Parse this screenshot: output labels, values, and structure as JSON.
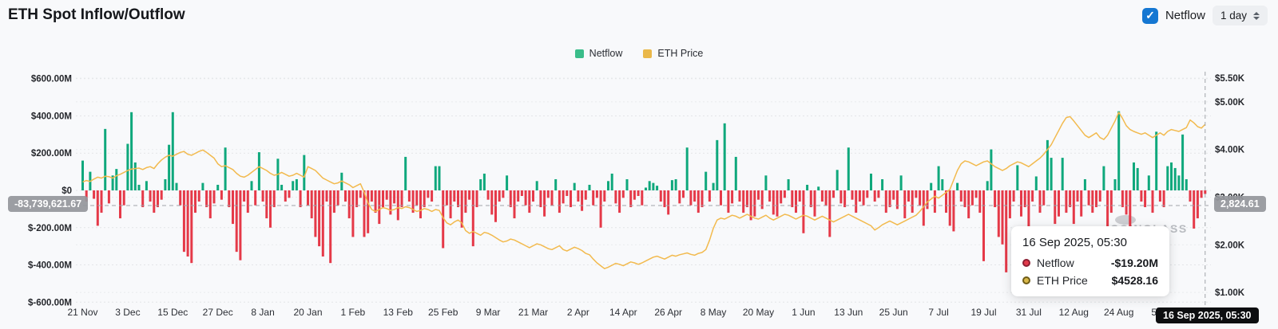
{
  "header": {
    "title": "ETH Spot Inflow/Outflow",
    "netflow_toggle": {
      "label": "Netflow",
      "checked": true,
      "check_glyph": "✓",
      "color": "#1577d2"
    },
    "interval_select": {
      "value": "1 day"
    }
  },
  "legend": [
    {
      "label": "Netflow",
      "color": "#3abd8a"
    },
    {
      "label": "ETH Price",
      "color": "#eab84a"
    }
  ],
  "crosshair": {
    "left_value": "-83,739,621.67",
    "right_value": "2,824.61",
    "x_value": "16 Sep 2025, 05:30"
  },
  "tooltip": {
    "title": "16 Sep 2025, 05:30",
    "rows": [
      {
        "label": "Netflow",
        "value": "-$19.20M",
        "dot_fill": "#e23a4b",
        "dot_ring": "#8d1f33"
      },
      {
        "label": "ETH Price",
        "value": "$4528.16",
        "dot_fill": "#d9b84a",
        "dot_ring": "#6f5c17"
      }
    ]
  },
  "watermark": "COINGLASS",
  "chart_data": {
    "type": "bar",
    "subtype": "bar+line combo, daily",
    "title": "ETH Spot Inflow/Outflow",
    "x_start": "21 Nov 2024",
    "x_end": "16 Sep 2025",
    "x_tick_labels": [
      "21 Nov",
      "3 Dec",
      "15 Dec",
      "27 Dec",
      "8 Jan",
      "20 Jan",
      "1 Feb",
      "13 Feb",
      "25 Feb",
      "9 Mar",
      "21 Mar",
      "2 Apr",
      "14 Apr",
      "26 Apr",
      "8 May",
      "20 May",
      "1 Jun",
      "13 Jun",
      "25 Jun",
      "7 Jul",
      "19 Jul",
      "31 Jul",
      "12 Aug",
      "24 Aug",
      "5 Sep"
    ],
    "y_left": {
      "name": "Netflow (USD)",
      "tick_labels": [
        "$600.00M",
        "$400.00M",
        "$200.00M",
        "$0",
        "$-200.00M",
        "$-400.00M",
        "$-600.00M"
      ],
      "tick_values": [
        600,
        400,
        200,
        0,
        -200,
        -400,
        -600
      ],
      "unit": "USD millions"
    },
    "y_right": {
      "name": "ETH Price (USD)",
      "tick_labels": [
        "$5.50K",
        "$5.00K",
        "$4.00K",
        "$3.00K",
        "$2.00K",
        "$1.00K"
      ],
      "tick_values": [
        5500,
        5000,
        4000,
        3000,
        2000,
        1000
      ],
      "unit": "USD"
    },
    "grid": "dotted horizontal",
    "legend_position": "top-center",
    "series": [
      {
        "name": "Netflow",
        "type": "bar",
        "unit": "USD millions",
        "color_positive": "#0fa87c",
        "color_negative": "#e53948",
        "values": [
          160,
          -60,
          100,
          -45,
          -190,
          -120,
          330,
          -70,
          80,
          115,
          -150,
          -80,
          250,
          420,
          150,
          30,
          -90,
          50,
          -60,
          -120,
          -90,
          -50,
          60,
          245,
          420,
          40,
          -80,
          -330,
          -355,
          -390,
          -120,
          -60,
          40,
          -90,
          -150,
          -70,
          30,
          -50,
          230,
          -90,
          -180,
          -330,
          -375,
          -60,
          -120,
          50,
          -80,
          205,
          -60,
          -150,
          -200,
          -90,
          170,
          30,
          -60,
          -40,
          50,
          60,
          -90,
          190,
          -80,
          -150,
          -250,
          -300,
          -355,
          -60,
          -390,
          -120,
          -80,
          95,
          -60,
          -150,
          -250,
          -90,
          -40,
          -250,
          -230,
          -60,
          -120,
          -180,
          -90,
          -50,
          -130,
          -70,
          -160,
          -90,
          180,
          -60,
          -120,
          -80,
          -150,
          -90,
          -40,
          -60,
          130,
          130,
          -310,
          -80,
          -150,
          -60,
          -90,
          -200,
          -120,
          -50,
          -300,
          -90,
          60,
          90,
          -50,
          -130,
          -170,
          -60,
          -40,
          80,
          -90,
          -150,
          -60,
          -30,
          -80,
          -120,
          -60,
          50,
          -90,
          -140,
          -40,
          -80,
          60,
          -120,
          -70,
          -30,
          -90,
          40,
          -60,
          -110,
          -50,
          30,
          -80,
          -40,
          -200,
          -60,
          50,
          90,
          -70,
          -120,
          -40,
          60,
          -90,
          -50,
          -30,
          -80,
          15,
          50,
          40,
          25,
          -60,
          -90,
          -130,
          55,
          60,
          -70,
          -40,
          230,
          -80,
          -60,
          -120,
          -90,
          100,
          -60,
          40,
          270,
          -80,
          360,
          -120,
          -70,
          180,
          -60,
          -120,
          -90,
          -160,
          -140,
          -50,
          -100,
          80,
          -60,
          -130,
          -140,
          -70,
          -40,
          60,
          -90,
          -120,
          -60,
          -230,
          30,
          -90,
          -140,
          20,
          -60,
          -80,
          -250,
          -40,
          110,
          -70,
          -90,
          230,
          -50,
          -120,
          -60,
          -80,
          -40,
          90,
          -60,
          -40,
          60,
          -120,
          -90,
          -50,
          -100,
          80,
          -150,
          -60,
          -120,
          -40,
          -80,
          -190,
          -100,
          40,
          -120,
          130,
          60,
          -120,
          -190,
          -220,
          40,
          -60,
          -90,
          -150,
          -80,
          -40,
          -120,
          -380,
          50,
          220,
          -90,
          -250,
          -290,
          -440,
          -150,
          -60,
          135,
          -140,
          -90,
          -290,
          -60,
          75,
          -120,
          -80,
          270,
          175,
          -180,
          -140,
          175,
          -120,
          -90,
          -180,
          -60,
          -140,
          60,
          -80,
          -120,
          -90,
          -60,
          130,
          -240,
          -120,
          60,
          425,
          -90,
          -130,
          -250,
          150,
          120,
          -60,
          -90,
          80,
          -120,
          315,
          -60,
          -90,
          130,
          150,
          120,
          80,
          300,
          60,
          -60,
          -205,
          -150,
          -40,
          -19.2
        ]
      },
      {
        "name": "ETH Price",
        "type": "line",
        "unit": "USD",
        "color": "#f2ba4e",
        "values": [
          3320,
          3350,
          3330,
          3380,
          3420,
          3400,
          3440,
          3430,
          3400,
          3450,
          3480,
          3520,
          3560,
          3590,
          3600,
          3610,
          3580,
          3620,
          3640,
          3600,
          3700,
          3780,
          3840,
          3880,
          3860,
          3900,
          3940,
          3960,
          3900,
          3880,
          3920,
          3960,
          3990,
          3940,
          3880,
          3820,
          3700,
          3640,
          3660,
          3620,
          3580,
          3500,
          3440,
          3420,
          3460,
          3520,
          3580,
          3640,
          3600,
          3560,
          3500,
          3460,
          3480,
          3520,
          3480,
          3440,
          3460,
          3500,
          3460,
          3420,
          3640,
          3600,
          3560,
          3480,
          3400,
          3360,
          3320,
          3280,
          3300,
          3340,
          3300,
          3260,
          3200,
          3240,
          3280,
          3100,
          2880,
          2740,
          2700,
          2740,
          2780,
          2760,
          2720,
          2740,
          2780,
          2760,
          2800,
          2780,
          2740,
          2700,
          2720,
          2760,
          2740,
          2700,
          2740,
          2720,
          2570,
          2460,
          2420,
          2480,
          2520,
          2460,
          2300,
          2240,
          2280,
          2240,
          2200,
          2260,
          2240,
          2200,
          2150,
          2100,
          2060,
          2080,
          2120,
          2100,
          2060,
          2020,
          1980,
          1940,
          1980,
          2020,
          2000,
          1960,
          1920,
          1900,
          1940,
          1980,
          1900,
          1870,
          1910,
          1950,
          1920,
          1880,
          1820,
          1790,
          1700,
          1620,
          1560,
          1500,
          1530,
          1570,
          1610,
          1590,
          1560,
          1600,
          1640,
          1620,
          1590,
          1620,
          1660,
          1700,
          1740,
          1760,
          1730,
          1700,
          1740,
          1780,
          1760,
          1790,
          1810,
          1830,
          1800,
          1780,
          1820,
          1840,
          1900,
          2100,
          2350,
          2520,
          2560,
          2540,
          2580,
          2620,
          2600,
          2560,
          2600,
          2640,
          2600,
          2560,
          2540,
          2580,
          2620,
          2560,
          2520,
          2560,
          2600,
          2640,
          2620,
          2580,
          2540,
          2580,
          2620,
          2600,
          2560,
          2520,
          2560,
          2600,
          2560,
          2520,
          2480,
          2520,
          2560,
          2600,
          2640,
          2600,
          2560,
          2520,
          2480,
          2440,
          2400,
          2310,
          2360,
          2420,
          2460,
          2500,
          2460,
          2420,
          2460,
          2500,
          2540,
          2580,
          2620,
          2700,
          2800,
          2900,
          2960,
          3020,
          2980,
          3040,
          3100,
          3160,
          3360,
          3560,
          3700,
          3760,
          3740,
          3700,
          3660,
          3700,
          3740,
          3760,
          3700,
          3640,
          3600,
          3560,
          3600,
          3660,
          3700,
          3740,
          3720,
          3680,
          3640,
          3700,
          3760,
          3820,
          3900,
          4000,
          4100,
          4250,
          4400,
          4550,
          4670,
          4690,
          4600,
          4500,
          4400,
          4300,
          4250,
          4300,
          4350,
          4250,
          4210,
          4300,
          4450,
          4600,
          4780,
          4650,
          4500,
          4420,
          4380,
          4350,
          4320,
          4350,
          4300,
          4250,
          4300,
          4350,
          4300,
          4380,
          4420,
          4400,
          4380,
          4420,
          4460,
          4620,
          4560,
          4480,
          4450,
          4528.16
        ]
      }
    ],
    "crosshair_point": {
      "x_label": "16 Sep 2025, 05:30",
      "netflow_axis_value": "-83,739,621.67",
      "price_axis_value": "2,824.61"
    }
  }
}
